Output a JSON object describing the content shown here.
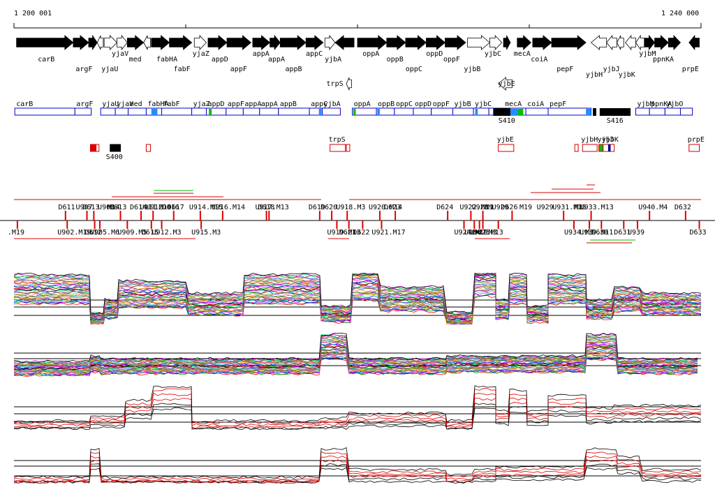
{
  "ruler": {
    "start_label": "1 200 001",
    "end_label": "1 240 000",
    "start_bp": 1200001,
    "end_bp": 1240000
  },
  "genes_top": [
    {
      "label": "carB",
      "s": 1200150,
      "e": 1203450,
      "dir": 1,
      "fill": "black"
    },
    {
      "label": "argF",
      "s": 1203450,
      "e": 1204350,
      "dir": 1,
      "fill": "black"
    },
    {
      "label": "",
      "s": 1204350,
      "e": 1204850,
      "dir": 1,
      "fill": "black"
    },
    {
      "label": "yjaU",
      "s": 1204850,
      "e": 1205200,
      "dir": -1,
      "fill": "white"
    },
    {
      "label": "yjaV",
      "s": 1205250,
      "e": 1206000,
      "dir": 1,
      "fill": "white"
    },
    {
      "label": "",
      "s": 1206000,
      "e": 1206600,
      "dir": 1,
      "fill": "white"
    },
    {
      "label": "med",
      "s": 1206600,
      "e": 1207550,
      "dir": 1,
      "fill": "black"
    },
    {
      "label": "",
      "s": 1207550,
      "e": 1207950,
      "dir": -1,
      "fill": "white"
    },
    {
      "label": "fabHA",
      "s": 1208000,
      "e": 1209050,
      "dir": 1,
      "fill": "black"
    },
    {
      "label": "fabF",
      "s": 1209050,
      "e": 1210350,
      "dir": 1,
      "fill": "black"
    },
    {
      "label": "yjaZ",
      "s": 1210500,
      "e": 1211200,
      "dir": 1,
      "fill": "white"
    },
    {
      "label": "appD",
      "s": 1211300,
      "e": 1212400,
      "dir": 1,
      "fill": "black"
    },
    {
      "label": "appF",
      "s": 1212400,
      "e": 1213800,
      "dir": 1,
      "fill": "black"
    },
    {
      "label": "appA",
      "s": 1213900,
      "e": 1214900,
      "dir": 1,
      "fill": "black"
    },
    {
      "label": "appA",
      "s": 1214900,
      "e": 1215500,
      "dir": 1,
      "fill": "black"
    },
    {
      "label": "appB",
      "s": 1215500,
      "e": 1217000,
      "dir": 1,
      "fill": "black"
    },
    {
      "label": "appC",
      "s": 1217000,
      "e": 1218000,
      "dir": 1,
      "fill": "black"
    },
    {
      "label": "",
      "s": 1218100,
      "e": 1218700,
      "dir": 1,
      "fill": "white"
    },
    {
      "label": "yjbA",
      "s": 1218700,
      "e": 1219800,
      "dir": -1,
      "fill": "black"
    },
    {
      "label": "oppA",
      "s": 1220000,
      "e": 1221700,
      "dir": 1,
      "fill": "black"
    },
    {
      "label": "oppB",
      "s": 1221700,
      "e": 1222800,
      "dir": 1,
      "fill": "black"
    },
    {
      "label": "oppC",
      "s": 1222800,
      "e": 1224000,
      "dir": 1,
      "fill": "black"
    },
    {
      "label": "oppD",
      "s": 1224000,
      "e": 1225100,
      "dir": 1,
      "fill": "black"
    },
    {
      "label": "oppF",
      "s": 1225100,
      "e": 1226300,
      "dir": 1,
      "fill": "black"
    },
    {
      "label": "yjbB",
      "s": 1226400,
      "e": 1227700,
      "dir": 1,
      "fill": "white"
    },
    {
      "label": "yjbC",
      "s": 1227700,
      "e": 1228400,
      "dir": 1,
      "fill": "white"
    },
    {
      "label": "",
      "s": 1228500,
      "e": 1228900,
      "dir": 1,
      "fill": "black"
    },
    {
      "label": "mecA",
      "s": 1229300,
      "e": 1230100,
      "dir": 1,
      "fill": "black"
    },
    {
      "label": "coiA",
      "s": 1230200,
      "e": 1231300,
      "dir": 1,
      "fill": "black"
    },
    {
      "label": "pepF",
      "s": 1231300,
      "e": 1233300,
      "dir": 1,
      "fill": "black"
    },
    {
      "label": "yjbH",
      "s": 1233600,
      "e": 1234500,
      "dir": -1,
      "fill": "white"
    },
    {
      "label": "yjbJ",
      "s": 1234500,
      "e": 1235100,
      "dir": -1,
      "fill": "white"
    },
    {
      "label": "",
      "s": 1235100,
      "e": 1235500,
      "dir": -1,
      "fill": "white"
    },
    {
      "label": "yjbK",
      "s": 1235600,
      "e": 1236200,
      "dir": -1,
      "fill": "white"
    },
    {
      "label": "",
      "s": 1236200,
      "e": 1236700,
      "dir": -1,
      "fill": "white"
    },
    {
      "label": "yjbM",
      "s": 1236700,
      "e": 1237300,
      "dir": 1,
      "fill": "black"
    },
    {
      "label": "ppnKA",
      "s": 1237300,
      "e": 1238100,
      "dir": 1,
      "fill": "black"
    },
    {
      "label": "",
      "s": 1238100,
      "e": 1238800,
      "dir": 1,
      "fill": "black"
    },
    {
      "label": "prpE",
      "s": 1239300,
      "e": 1239900,
      "dir": -1,
      "fill": "black"
    }
  ],
  "genes_bottom": [
    {
      "label": "trpS",
      "s": 1219350,
      "e": 1219650,
      "dir": -1,
      "fill": "white"
    },
    {
      "label": "yjbE",
      "s": 1228200,
      "e": 1229000,
      "dir": -1,
      "fill": "white"
    }
  ],
  "gene_labels_top": [
    {
      "label": "carB",
      "pos": 1201800,
      "row": 1
    },
    {
      "label": "argF",
      "pos": 1204000,
      "row": 2
    },
    {
      "label": "yjaU",
      "pos": 1205500,
      "row": 2
    },
    {
      "label": "yjaV",
      "pos": 1206100,
      "row": 0
    },
    {
      "label": "med",
      "pos": 1207100,
      "row": 1
    },
    {
      "label": "fabHA",
      "pos": 1208700,
      "row": 1
    },
    {
      "label": "fabF",
      "pos": 1209700,
      "row": 2
    },
    {
      "label": "yjaZ",
      "pos": 1210800,
      "row": 0
    },
    {
      "label": "appD",
      "pos": 1211900,
      "row": 1
    },
    {
      "label": "appF",
      "pos": 1213000,
      "row": 2
    },
    {
      "label": "appA",
      "pos": 1214300,
      "row": 0
    },
    {
      "label": "appA",
      "pos": 1215200,
      "row": 1
    },
    {
      "label": "appB",
      "pos": 1216200,
      "row": 2
    },
    {
      "label": "appC",
      "pos": 1217400,
      "row": 0
    },
    {
      "label": "yjbA",
      "pos": 1218500,
      "row": 1
    },
    {
      "label": "oppA",
      "pos": 1220700,
      "row": 0
    },
    {
      "label": "oppB",
      "pos": 1222100,
      "row": 1
    },
    {
      "label": "oppC",
      "pos": 1223200,
      "row": 2
    },
    {
      "label": "oppD",
      "pos": 1224400,
      "row": 0
    },
    {
      "label": "oppF",
      "pos": 1225400,
      "row": 1
    },
    {
      "label": "yjbB",
      "pos": 1226600,
      "row": 2
    },
    {
      "label": "yjbC",
      "pos": 1227800,
      "row": 0
    },
    {
      "label": "mecA",
      "pos": 1229500,
      "row": 0
    },
    {
      "label": "coiA",
      "pos": 1230500,
      "row": 1
    },
    {
      "label": "pepF",
      "pos": 1232000,
      "row": 2
    },
    {
      "label": "yjbH",
      "pos": 1233700,
      "row": 3
    },
    {
      "label": "yjbJ",
      "pos": 1234700,
      "row": 2
    },
    {
      "label": "yjbK",
      "pos": 1235600,
      "row": 3
    },
    {
      "label": "yjbM",
      "pos": 1236800,
      "row": 0
    },
    {
      "label": "ppnKA",
      "pos": 1237600,
      "row": 1
    },
    {
      "label": "prpE",
      "pos": 1239300,
      "row": 2
    }
  ],
  "gene_labels_bottom": [
    {
      "label": "trpS",
      "pos": 1218600
    },
    {
      "label": "yjbE",
      "pos": 1228600
    }
  ],
  "tus": [
    {
      "label": "carB",
      "s": 1200050,
      "e": 1203550,
      "ls": "blue",
      "rs": "blue",
      "marks": []
    },
    {
      "label": "argF",
      "s": 1203550,
      "e": 1204500,
      "ls": "blue",
      "rs": "blue",
      "marks": []
    },
    {
      "label": "yjaU",
      "s": 1205050,
      "e": 1205900,
      "ls": "blue",
      "rs": "blue",
      "marks": []
    },
    {
      "label": "yjaV",
      "s": 1205900,
      "e": 1206650,
      "ls": "blue",
      "rs": "blue",
      "marks": []
    },
    {
      "label": "med",
      "s": 1206650,
      "e": 1207700,
      "ls": "blue",
      "rs": "blue",
      "marks": []
    },
    {
      "label": "fabHA",
      "s": 1207700,
      "e": 1208600,
      "ls": "blue",
      "rs": "blue",
      "marks": [
        {
          "p": 1208000,
          "w": 350,
          "c": "#1e90ff"
        }
      ]
    },
    {
      "label": "fabF",
      "s": 1208600,
      "e": 1210350,
      "ls": "blue",
      "rs": "blue",
      "marks": []
    },
    {
      "label": "yjaZ",
      "s": 1210350,
      "e": 1211200,
      "ls": "blue",
      "rs": "blue",
      "marks": []
    },
    {
      "label": "appD",
      "s": 1211200,
      "e": 1212350,
      "ls": "blue",
      "rs": "blue",
      "marks": [
        {
          "p": 1211350,
          "w": 160,
          "c": "#00c000"
        }
      ]
    },
    {
      "label": "appF",
      "s": 1212350,
      "e": 1213350,
      "ls": "blue",
      "rs": "blue",
      "marks": []
    },
    {
      "label": "appA",
      "s": 1213350,
      "e": 1214300,
      "ls": "blue",
      "rs": "blue",
      "marks": []
    },
    {
      "label": "appA",
      "s": 1214300,
      "e": 1215400,
      "ls": "blue",
      "rs": "blue",
      "marks": []
    },
    {
      "label": "appB",
      "s": 1215400,
      "e": 1217200,
      "ls": "blue",
      "rs": "blue",
      "marks": []
    },
    {
      "label": "appC",
      "s": 1217200,
      "e": 1217950,
      "ls": "blue",
      "rs": "blue",
      "marks": [
        {
          "p": 1217750,
          "w": 160,
          "c": "#1e90ff"
        }
      ]
    },
    {
      "label": "yjbA",
      "s": 1217950,
      "e": 1219000,
      "ls": "blue",
      "rs": "blue",
      "marks": []
    },
    {
      "label": "oppA",
      "s": 1219700,
      "e": 1221100,
      "ls": "blue",
      "rs": "blue",
      "marks": [
        {
          "p": 1219750,
          "w": 150,
          "c": "#00c000"
        }
      ]
    },
    {
      "label": "oppB",
      "s": 1221100,
      "e": 1222150,
      "ls": "blue",
      "rs": "blue",
      "marks": [
        {
          "p": 1221150,
          "w": 150,
          "c": "#1e90ff"
        }
      ]
    },
    {
      "label": "oppC",
      "s": 1222150,
      "e": 1223250,
      "ls": "blue",
      "rs": "blue",
      "marks": []
    },
    {
      "label": "oppD",
      "s": 1223250,
      "e": 1224300,
      "ls": "blue",
      "rs": "blue",
      "marks": []
    },
    {
      "label": "oppF",
      "s": 1224300,
      "e": 1225550,
      "ls": "blue",
      "rs": "blue",
      "marks": []
    },
    {
      "label": "yjbB",
      "s": 1225550,
      "e": 1226750,
      "ls": "blue",
      "rs": "blue",
      "marks": []
    },
    {
      "label": "yjbC",
      "s": 1226750,
      "e": 1227650,
      "ls": "blue",
      "rs": "blue",
      "marks": [
        {
          "p": 1226850,
          "w": 150,
          "c": "#1e90ff"
        }
      ]
    },
    {
      "label": "",
      "s": 1227650,
      "e": 1228150,
      "ls": "blue",
      "rs": "blue",
      "marks": []
    },
    {
      "label": "",
      "s": 1228150,
      "e": 1228500,
      "ls": "blue",
      "rs": "blue",
      "marks": []
    },
    {
      "label": "mecA",
      "s": 1228500,
      "e": 1229800,
      "ls": "blue",
      "rs": "blue",
      "marks": [
        {
          "p": 1228550,
          "w": 800,
          "c": "#1e90ff"
        },
        {
          "p": 1229350,
          "w": 300,
          "c": "#00c000"
        }
      ]
    },
    {
      "label": "coiA",
      "s": 1229800,
      "e": 1231100,
      "ls": "blue",
      "rs": "blue",
      "marks": []
    },
    {
      "label": "pepF",
      "s": 1231100,
      "e": 1233600,
      "ls": "blue",
      "rs": "blue",
      "marks": [
        {
          "p": 1233300,
          "w": 300,
          "c": "#1e90ff"
        }
      ]
    },
    {
      "label": "yjbM",
      "s": 1236200,
      "e": 1237000,
      "ls": "blue",
      "rs": "blue",
      "marks": []
    },
    {
      "label": "ppnKA",
      "s": 1237000,
      "e": 1237900,
      "ls": "blue",
      "rs": "blue",
      "marks": []
    },
    {
      "label": "yjbO",
      "s": 1237900,
      "e": 1238800,
      "ls": "blue",
      "rs": "blue",
      "marks": []
    },
    {
      "label": "",
      "s": 1238800,
      "e": 1239500,
      "ls": "blue",
      "rs": "blue",
      "marks": []
    }
  ],
  "tu_black_blocks": [
    {
      "label": "S410",
      "s": 1227900,
      "e": 1228900,
      "label_pos": 1228200,
      "show_label": true
    },
    {
      "label": "",
      "s": 1233700,
      "e": 1233900,
      "label_pos": 1233700,
      "show_label": false
    },
    {
      "label": "S416",
      "s": 1234100,
      "e": 1235900,
      "label_pos": 1234500,
      "show_label": true
    }
  ],
  "tu_labels": [
    "carB",
    "argF",
    "yjaU",
    "yjaV",
    "med",
    "fabHA",
    "fabF",
    "yjaZ",
    "appD",
    "appF",
    "appA",
    "appA",
    "appB",
    "appC",
    "yjbA",
    "oppA",
    "oppB",
    "oppC",
    "oppD",
    "oppF",
    "yjbB",
    "yjbC",
    "",
    "",
    "mecA",
    "coiA",
    "pepF",
    "yjbM",
    "ppnKA",
    "yjbO",
    ""
  ],
  "regulators": [
    {
      "label": "",
      "s": 1204450,
      "e": 1204950,
      "fill": "red_half"
    },
    {
      "label": "S400",
      "s": 1205600,
      "e": 1206200,
      "fill": "black",
      "show_label": true
    },
    {
      "label": "",
      "s": 1207700,
      "e": 1207950,
      "fill": "none"
    },
    {
      "label": "trpS",
      "s": 1218400,
      "e": 1219300,
      "fill": "none",
      "show_label": true
    },
    {
      "label": "",
      "s": 1219350,
      "e": 1219550,
      "fill": "none"
    },
    {
      "label": "yjbE",
      "s": 1228200,
      "e": 1229100,
      "fill": "none",
      "show_label": true
    },
    {
      "label": "",
      "s": 1232650,
      "e": 1232850,
      "fill": "none"
    },
    {
      "label": "yjbH",
      "s": 1233100,
      "e": 1233950,
      "fill": "none",
      "show_label": true
    },
    {
      "label": "yjbJ",
      "s": 1234050,
      "e": 1234300,
      "fill": "green",
      "show_label": true
    },
    {
      "label": "yjbK",
      "s": 1234300,
      "e": 1234950,
      "fill": "navy_mid",
      "show_label": true
    },
    {
      "label": "prpE",
      "s": 1239300,
      "e": 1239900,
      "fill": "none",
      "show_label": true
    }
  ],
  "upper_probes": [
    "U907",
    "D613",
    "M14",
    "U908",
    "D614",
    "U911",
    "M14",
    "M14",
    "U912",
    "M13",
    "U913",
    "D616",
    "D617",
    "U914.M15",
    "U916.M14",
    "U917.M13",
    "D618",
    "D619",
    "D620",
    "U918.M3",
    "U920.M14",
    "D623",
    "D624",
    "U922",
    "M19",
    "U928",
    "M1",
    "U929",
    "D626",
    "M19",
    "U931.M13",
    "U933",
    "M3",
    "M13",
    "U940.M4",
    "D632"
  ],
  "lower_probes": [
    ".M19",
    "U902.M19",
    "D612",
    "U905.M6",
    "U909.M5",
    "D615",
    "U912.M3",
    "U915.M3",
    "D621",
    "D622",
    "U919.M13",
    "U921.M17",
    "U924.M19",
    "U927.M13",
    "U930",
    "D625",
    "U934.M3",
    "D630",
    "D631",
    "U939.M11",
    "D633"
  ],
  "upper_probe_ticks": [
    {
      "t": "D611",
      "p": 1203000
    },
    {
      "t": "D613",
      "p": 1204650,
      "lbl": "D613"
    },
    {
      "t": "U907",
      "p": 1204250,
      "lbl": "U907"
    },
    {
      "t": "M14",
      "p": 1206200
    },
    {
      "t": "D614",
      "p": 1207400,
      "lbl": "D614"
    },
    {
      "t": "U911",
      "p": 1208100
    },
    {
      "t": "D616",
      "p": 1209300,
      "lbl": "D616"
    },
    {
      "t": "U914",
      "p": 1210850,
      "lbl": "U914.M15"
    },
    {
      "t": "U916",
      "p": 1212150,
      "lbl": "U916.M14"
    },
    {
      "t": "U917",
      "p": 1214700,
      "lbl": "U917.M13"
    },
    {
      "t": "D618",
      "p": 1214850,
      "lbl": "D618"
    },
    {
      "t": "D619",
      "p": 1217800,
      "lbl": "D619"
    },
    {
      "t": "D620",
      "p": 1218500,
      "lbl": "D620"
    },
    {
      "t": "U918",
      "p": 1219400,
      "lbl": "U918.M3"
    },
    {
      "t": "U920",
      "p": 1221300,
      "lbl": "U920.M14"
    },
    {
      "t": "D623",
      "p": 1222200,
      "lbl": "D623"
    },
    {
      "t": "D624",
      "p": 1225250,
      "lbl": "D624"
    },
    {
      "t": "U922",
      "p": 1226600,
      "lbl": "U922.M19"
    },
    {
      "t": "U928",
      "p": 1227300,
      "lbl": "U928"
    },
    {
      "t": "D626",
      "p": 1229000,
      "lbl": "D626"
    },
    {
      "t": "U931",
      "p": 1232000,
      "lbl": "U931.M13"
    },
    {
      "t": "U933",
      "p": 1233600,
      "lbl": "U933.M13"
    },
    {
      "t": "U940",
      "p": 1237000,
      "lbl": "U940.M4"
    },
    {
      "t": "D632",
      "p": 1239100,
      "lbl": "D632"
    }
  ],
  "upper_probe_labels_extra": [
    {
      "lbl": "D611",
      "p": 1203150
    },
    {
      "lbl": "M14",
      "p": 1206000
    },
    {
      "lbl": "U908",
      "p": 1205450
    },
    {
      "lbl": "D613",
      "p": 1206150
    },
    {
      "lbl": "U911",
      "p": 1207900
    },
    {
      "lbl": "M14",
      "p": 1209000
    },
    {
      "lbl": "U912",
      "p": 1208250
    },
    {
      "lbl": "D617",
      "p": 1209500
    },
    {
      "lbl": "U929",
      "p": 1228400
    },
    {
      "lbl": "M1",
      "p": 1228000
    },
    {
      "lbl": "M19",
      "p": 1230000
    },
    {
      "lbl": "U929",
      "p": 1231000
    },
    {
      "lbl": "M3",
      "p": 1233200
    }
  ],
  "lower_probe_ticks": [
    {
      "lbl": ".M19",
      "p": 1200200
    },
    {
      "lbl": "U902.M19",
      "p": 1203100
    },
    {
      "lbl": "D612",
      "p": 1204700
    },
    {
      "lbl": "U905.M6",
      "p": 1205000
    },
    {
      "lbl": "U909.M5",
      "p": 1206600
    },
    {
      "lbl": "D615",
      "p": 1208000
    },
    {
      "lbl": "U912.M3",
      "p": 1208600
    },
    {
      "lbl": "U915.M3",
      "p": 1210900
    },
    {
      "lbl": "D621",
      "p": 1219500
    },
    {
      "lbl": "D622",
      "p": 1220300
    },
    {
      "lbl": "U919.M13",
      "p": 1218800
    },
    {
      "lbl": "U921.M17",
      "p": 1221400
    },
    {
      "lbl": "U924.M19",
      "p": 1226200
    },
    {
      "lbl": "U927.M13",
      "p": 1227100
    },
    {
      "lbl": "M3",
      "p": 1228200
    },
    {
      "lbl": "U930",
      "p": 1226800
    },
    {
      "lbl": "D625",
      "p": 1227300
    },
    {
      "lbl": "U934.M3",
      "p": 1232600
    },
    {
      "lbl": "D630",
      "p": 1234200
    },
    {
      "lbl": "U939.M11",
      "p": 1233500
    },
    {
      "lbl": "D631",
      "p": 1235500
    },
    {
      "lbl": "U939",
      "p": 1236300
    },
    {
      "lbl": "D633",
      "p": 1239900
    }
  ],
  "colors": {
    "ruler": "#000000",
    "gene": "#000000",
    "tu_box": "#0000cc",
    "regulator": "#cc0000",
    "probe": "#dd0000",
    "green": "#00c000",
    "blue_mark": "#1e90ff"
  }
}
